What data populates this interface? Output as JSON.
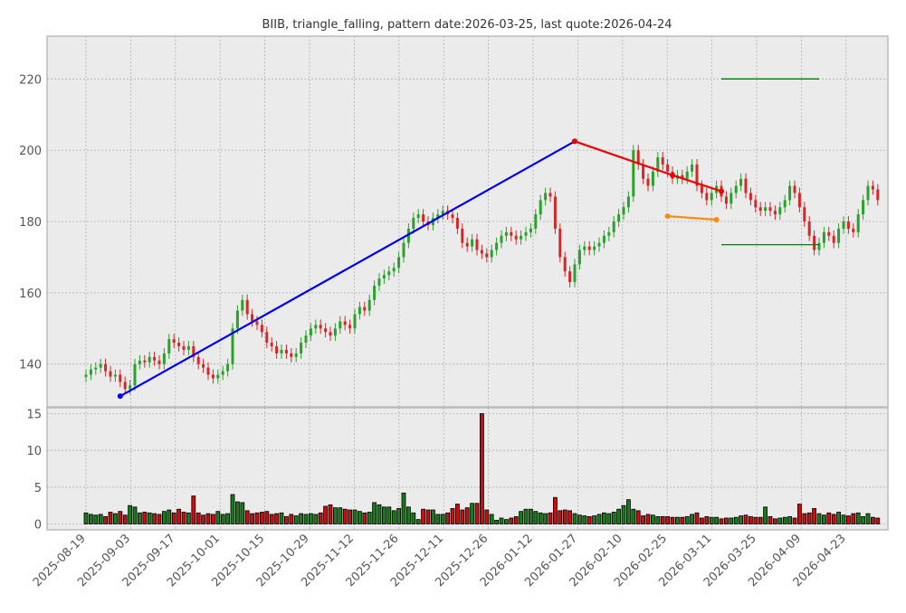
{
  "chart_data": {
    "type": "candlestick",
    "title": "BIIB, triangle_falling, pattern date:2026-03-25, last quote:2026-04-24",
    "price_axis": {
      "ylim": [
        128,
        232
      ],
      "ticks": [
        140,
        160,
        180,
        200,
        220
      ]
    },
    "volume_axis": {
      "ylim": [
        -0.8,
        15.8
      ],
      "ticks": [
        0,
        5,
        10,
        15
      ]
    },
    "x_ticks": [
      "2025-08-19",
      "2025-09-03",
      "2025-09-17",
      "2025-10-01",
      "2025-10-15",
      "2025-10-29",
      "2025-11-12",
      "2025-11-26",
      "2025-12-11",
      "2025-12-26",
      "2026-01-12",
      "2026-01-27",
      "2026-02-10",
      "2026-02-25",
      "2026-03-11",
      "2026-03-25",
      "2026-04-09",
      "2026-04-23"
    ],
    "grid": true,
    "closes": [
      137,
      138.5,
      139,
      140,
      138,
      136.5,
      137,
      135,
      133,
      134,
      140,
      141,
      140.5,
      142,
      141,
      140,
      143,
      147,
      146,
      145,
      144,
      145,
      142,
      140,
      139,
      137,
      136,
      137,
      138,
      140,
      150,
      155,
      158,
      154,
      152,
      151,
      149,
      146,
      145,
      143,
      144,
      143,
      142,
      143,
      146,
      148,
      150,
      151,
      150,
      149,
      148,
      150,
      152,
      151,
      150,
      154,
      156,
      155,
      158,
      162,
      164,
      165,
      166,
      167,
      170,
      174,
      178,
      181,
      182,
      180,
      179,
      181,
      182,
      183,
      182,
      181,
      178,
      174,
      173,
      175,
      172,
      171,
      170,
      172,
      174,
      176,
      177,
      176,
      175,
      176,
      177,
      178,
      182,
      186,
      188,
      187,
      178,
      170,
      166,
      163,
      168,
      172,
      173,
      172,
      173,
      174,
      176,
      177,
      180,
      182,
      184,
      187,
      200,
      196,
      192,
      190,
      194,
      198,
      196,
      194,
      192,
      193,
      192,
      194,
      196,
      190,
      188,
      186,
      188,
      190,
      187,
      185,
      188,
      190,
      192,
      188,
      186,
      184,
      183,
      184,
      183,
      182,
      184,
      186,
      190,
      188,
      184,
      180,
      176,
      172,
      174,
      177,
      176,
      174,
      178,
      180,
      178,
      177,
      182,
      186,
      190,
      189,
      186
    ],
    "volumes": [
      1.5,
      1.3,
      1.2,
      1.3,
      1.0,
      1.6,
      1.4,
      1.7,
      1.2,
      2.5,
      2.3,
      1.5,
      1.6,
      1.5,
      1.4,
      1.3,
      1.7,
      1.9,
      1.5,
      2.0,
      1.6,
      1.5,
      3.8,
      1.5,
      1.2,
      1.4,
      1.3,
      1.7,
      1.3,
      1.4,
      4.0,
      3.0,
      2.9,
      1.8,
      1.4,
      1.5,
      1.6,
      1.7,
      1.3,
      1.4,
      1.5,
      1.0,
      1.3,
      1.1,
      1.4,
      1.3,
      1.4,
      1.3,
      1.5,
      2.4,
      2.6,
      2.2,
      2.2,
      2.0,
      1.9,
      1.9,
      1.7,
      1.5,
      1.6,
      2.9,
      2.6,
      2.3,
      2.3,
      1.8,
      2.1,
      4.2,
      2.3,
      1.5,
      0.6,
      2.0,
      1.9,
      1.9,
      1.3,
      1.3,
      1.5,
      2.1,
      2.7,
      1.9,
      2.2,
      2.8,
      2.8,
      15.0,
      1.9,
      1.3,
      0.5,
      0.8,
      0.6,
      0.8,
      1.0,
      1.7,
      2.0,
      2.0,
      1.7,
      1.5,
      1.4,
      1.5,
      3.6,
      1.8,
      1.9,
      1.8,
      1.4,
      1.2,
      1.1,
      1.0,
      1.1,
      1.3,
      1.5,
      1.4,
      1.6,
      2.0,
      2.5,
      3.3,
      2.0,
      1.8,
      1.1,
      1.3,
      1.2,
      1.0,
      1.0,
      1.0,
      0.9,
      0.9,
      0.9,
      1.0,
      1.3,
      1.5,
      0.8,
      1.0,
      0.9,
      0.9,
      0.7,
      0.8,
      0.8,
      0.9,
      1.1,
      1.2,
      1.0,
      0.9,
      0.9,
      2.3,
      1.0,
      0.7,
      0.8,
      0.9,
      1.0,
      0.8,
      2.7,
      1.4,
      1.5,
      2.1,
      1.4,
      1.2,
      1.5,
      1.3,
      1.6,
      1.2,
      1.1,
      1.4,
      1.5,
      1.0,
      1.4,
      0.9,
      0.8
    ],
    "pattern_lines": [
      {
        "color": "#0000ee",
        "points": [
          [
            7,
            131
          ],
          [
            100,
            202.5
          ]
        ]
      },
      {
        "color": "#ee0000",
        "points": [
          [
            100,
            202.5
          ],
          [
            120,
            193
          ],
          [
            130,
            188.5
          ]
        ]
      },
      {
        "color": "#ff8c00",
        "points": [
          [
            119,
            181.5
          ],
          [
            129,
            180.5
          ]
        ]
      }
    ],
    "levels": [
      {
        "color": "#008000",
        "value": 220,
        "x": [
          130,
          150
        ]
      },
      {
        "color": "#008000",
        "value": 173.5,
        "x": [
          130,
          150
        ]
      }
    ]
  }
}
